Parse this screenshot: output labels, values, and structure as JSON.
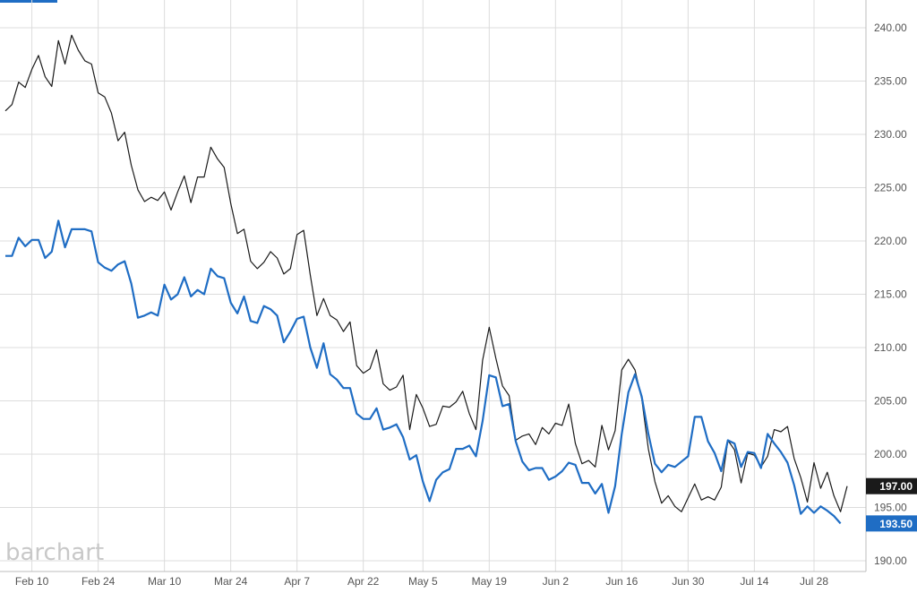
{
  "logo": {
    "text": "barchart",
    "color": "#c8c8c8"
  },
  "colors": {
    "accent_tab": "#1f6dc4",
    "series_black": "#1a1a1a",
    "series_blue": "#1f6dc4"
  },
  "chart_data": {
    "type": "line",
    "title": "",
    "xlabel": "",
    "ylabel": "",
    "ylim": [
      190,
      240
    ],
    "y_ticks": [
      190,
      195,
      200,
      205,
      210,
      215,
      220,
      225,
      230,
      235,
      240
    ],
    "y_tick_labels": [
      "190.00",
      "195.00",
      "200.00",
      "205.00",
      "210.00",
      "215.00",
      "220.00",
      "225.00",
      "230.00",
      "235.00",
      "240.00"
    ],
    "x_tick_labels": [
      "Feb 10",
      "Feb 24",
      "Mar 10",
      "Mar 24",
      "Apr 7",
      "Apr 22",
      "May 5",
      "May 19",
      "Jun 2",
      "Jun 16",
      "Jun 30",
      "Jul 14",
      "Jul 28"
    ],
    "x_tick_index": [
      4,
      14,
      24,
      34,
      44,
      54,
      63,
      73,
      83,
      93,
      103,
      113,
      122
    ],
    "grid": true,
    "legend": "none",
    "series": [
      {
        "color": "#1a1a1a",
        "last_value_label": "197.00",
        "values": [
          232.2,
          232.8,
          234.9,
          234.4,
          236.1,
          237.4,
          235.4,
          234.5,
          238.8,
          236.6,
          239.3,
          237.9,
          236.9,
          236.6,
          233.9,
          233.5,
          232.0,
          229.4,
          230.2,
          227.1,
          224.8,
          223.7,
          224.1,
          223.8,
          224.6,
          222.9,
          224.6,
          226.1,
          223.6,
          226.0,
          226.0,
          228.8,
          227.7,
          226.9,
          223.5,
          220.7,
          221.1,
          218.1,
          217.4,
          218.0,
          219.0,
          218.4,
          216.9,
          217.4,
          220.6,
          221.0,
          216.8,
          213.0,
          214.6,
          213.0,
          212.6,
          211.5,
          212.4,
          208.3,
          207.6,
          208.0,
          209.8,
          206.6,
          206.0,
          206.3,
          207.4,
          202.3,
          205.6,
          204.3,
          202.6,
          202.8,
          204.5,
          204.4,
          204.9,
          205.9,
          203.8,
          202.3,
          208.8,
          211.9,
          209.0,
          206.4,
          205.5,
          201.3,
          201.7,
          201.9,
          200.9,
          202.5,
          201.9,
          202.9,
          202.7,
          204.7,
          201.0,
          199.1,
          199.4,
          198.8,
          202.7,
          200.4,
          202.2,
          207.9,
          208.9,
          207.9,
          205.2,
          200.5,
          197.4,
          195.4,
          196.1,
          195.1,
          194.6,
          195.9,
          197.2,
          195.7,
          196.0,
          195.7,
          196.9,
          201.3,
          200.4,
          197.3,
          200.1,
          199.9,
          198.8,
          199.8,
          202.3,
          202.1,
          202.6,
          199.6,
          197.8,
          195.5,
          199.2,
          196.8,
          198.3,
          196.1,
          194.6,
          197.0
        ]
      },
      {
        "color": "#1f6dc4",
        "last_value_label": "193.50",
        "values": [
          218.6,
          218.6,
          220.3,
          219.5,
          220.1,
          220.1,
          218.4,
          219.0,
          221.9,
          219.4,
          221.1,
          221.1,
          221.1,
          220.9,
          218.0,
          217.5,
          217.2,
          217.8,
          218.1,
          216.0,
          212.8,
          213.0,
          213.3,
          213.0,
          215.9,
          214.5,
          215.0,
          216.6,
          214.8,
          215.4,
          215.0,
          217.4,
          216.7,
          216.5,
          214.2,
          213.2,
          214.8,
          212.5,
          212.3,
          213.9,
          213.6,
          213.0,
          210.5,
          211.5,
          212.7,
          212.9,
          210.0,
          208.1,
          210.4,
          207.5,
          207.0,
          206.2,
          206.2,
          203.8,
          203.3,
          203.3,
          204.3,
          202.3,
          202.5,
          202.8,
          201.6,
          199.5,
          199.9,
          197.4,
          195.6,
          197.6,
          198.3,
          198.6,
          200.5,
          200.5,
          200.8,
          199.8,
          203.1,
          207.4,
          207.2,
          204.5,
          204.7,
          201.2,
          199.3,
          198.5,
          198.7,
          198.7,
          197.6,
          197.9,
          198.4,
          199.2,
          199.0,
          197.3,
          197.3,
          196.3,
          197.2,
          194.5,
          197.0,
          201.9,
          205.8,
          207.5,
          205.4,
          201.9,
          199.1,
          198.3,
          199.0,
          198.8,
          199.3,
          199.8,
          203.5,
          203.5,
          201.2,
          200.1,
          198.4,
          201.3,
          201.0,
          198.8,
          200.2,
          200.1,
          198.7,
          201.9,
          201.0,
          200.2,
          199.2,
          197.1,
          194.4,
          195.1,
          194.5,
          195.1,
          194.7,
          194.2,
          193.5
        ]
      }
    ]
  }
}
